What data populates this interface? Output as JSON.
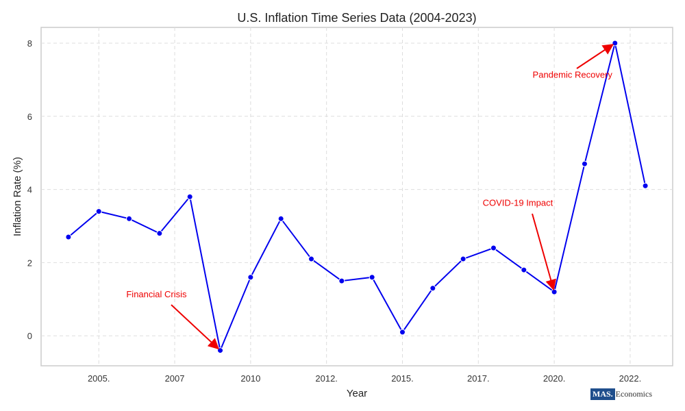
{
  "chart_data": {
    "type": "line",
    "title": "U.S. Inflation Time Series Data (2004-2023)",
    "xlabel": "Year",
    "ylabel": "Inflation Rate (%)",
    "x": [
      2004,
      2005,
      2006,
      2007,
      2008,
      2009,
      2010,
      2011,
      2012,
      2013,
      2014,
      2015,
      2016,
      2017,
      2018,
      2019,
      2020,
      2021,
      2022,
      2023
    ],
    "series": [
      {
        "values": [
          2.7,
          3.4,
          3.2,
          2.8,
          3.8,
          -0.4,
          1.6,
          3.2,
          2.1,
          1.5,
          1.6,
          0.1,
          1.3,
          2.1,
          2.4,
          1.8,
          1.2,
          4.7,
          8.0,
          4.1
        ],
        "color": "#0000ee"
      }
    ],
    "xticks": [
      {
        "value": 2005,
        "label": "2005."
      },
      {
        "value": 2007.5,
        "label": "2007"
      },
      {
        "value": 2010,
        "label": "2010"
      },
      {
        "value": 2012.5,
        "label": "2012."
      },
      {
        "value": 2015,
        "label": "2015."
      },
      {
        "value": 2017.5,
        "label": "2017."
      },
      {
        "value": 2020,
        "label": "2020."
      },
      {
        "value": 2022.5,
        "label": "2022."
      }
    ],
    "yticks": [
      0,
      2,
      4,
      6,
      8
    ],
    "xlim": [
      2003.1,
      2023.9
    ],
    "ylim": [
      -0.82,
      8.43
    ],
    "grid": true,
    "annotations": [
      {
        "text": "Financial Crisis",
        "x": 2009,
        "y": -0.4,
        "text_x": 2006.9,
        "text_y": 1.05
      },
      {
        "text": "COVID-19 Impact",
        "x": 2020,
        "y": 1.2,
        "text_x": 2018.8,
        "text_y": 3.55
      },
      {
        "text": "Pandemic Recovery",
        "x": 2022,
        "y": 8.0,
        "text_x": 2020.6,
        "text_y": 7.05
      }
    ],
    "annotation_color": "#ee0000"
  },
  "watermark": {
    "logo_text": "MAS.",
    "logo_rest": "Economics"
  }
}
